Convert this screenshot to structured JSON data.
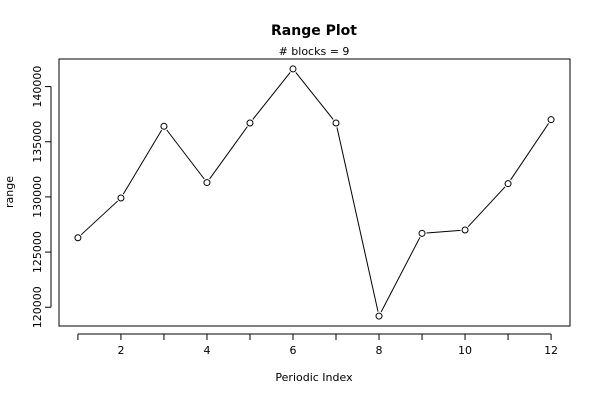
{
  "chart_data": {
    "type": "line",
    "title": "Range Plot",
    "subtitle": "# blocks =  9",
    "xlabel": "Periodic Index",
    "ylabel": "range",
    "x": [
      1,
      2,
      3,
      4,
      5,
      6,
      7,
      8,
      9,
      10,
      11,
      12
    ],
    "series": [
      {
        "values": [
          126300,
          129900,
          136400,
          131300,
          136700,
          141600,
          136700,
          119200,
          126700,
          127000,
          131200,
          137000
        ]
      }
    ],
    "xlim": [
      0.56,
      12.44
    ],
    "ylim": [
      118300,
      142500
    ],
    "xticks": [
      2,
      4,
      6,
      8,
      10,
      12
    ],
    "xtick_labels": [
      "2",
      "4",
      "6",
      "8",
      "10",
      "12"
    ],
    "yticks": [
      120000,
      125000,
      130000,
      135000,
      140000
    ],
    "ytick_labels": [
      "120000",
      "125000",
      "130000",
      "135000",
      "140000"
    ],
    "grid": false,
    "markers": "open-circle",
    "colors": {
      "line": "#000000",
      "marker": "#000000"
    }
  }
}
